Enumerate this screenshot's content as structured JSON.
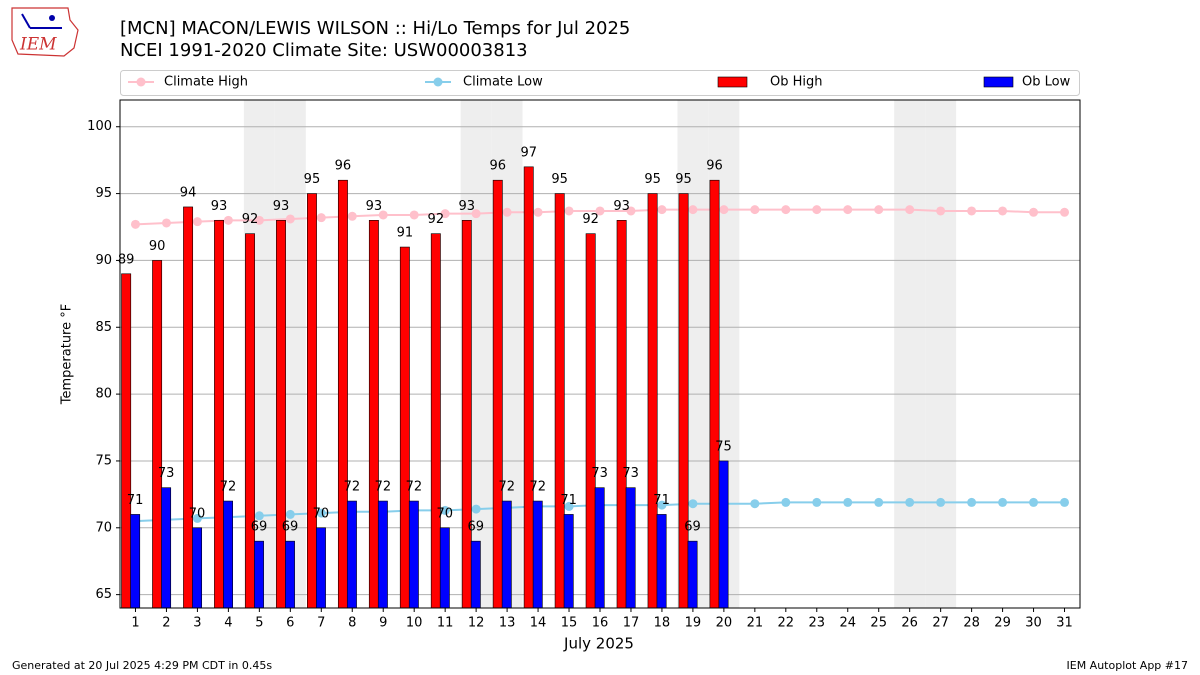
{
  "chart_data": {
    "type": "bar",
    "title": "[MCN] MACON/LEWIS WILSON :: Hi/Lo Temps for Jul 2025",
    "subtitle": "NCEI 1991-2020 Climate Site: USW00003813",
    "logo_text": "IEM",
    "x_label": "July 2025",
    "y_label": "Temperature °F",
    "footer_left": "Generated at 20 Jul 2025 4:29 PM CDT in 0.45s",
    "footer_right": "IEM Autoplot App #17",
    "categories": [
      "1",
      "2",
      "3",
      "4",
      "5",
      "6",
      "7",
      "8",
      "9",
      "10",
      "11",
      "12",
      "13",
      "14",
      "15",
      "16",
      "17",
      "18",
      "19",
      "20",
      "21",
      "22",
      "23",
      "24",
      "25",
      "26",
      "27",
      "28",
      "29",
      "30",
      "31"
    ],
    "shaded": [
      "5",
      "6",
      "12",
      "13",
      "19",
      "20",
      "26",
      "27"
    ],
    "ylim": [
      64,
      102
    ],
    "yticks": [
      65,
      70,
      75,
      80,
      85,
      90,
      95,
      100
    ],
    "grid": true,
    "series": [
      {
        "name": "Climate High",
        "kind": "line",
        "color": "#ffc0cb",
        "values": [
          92.7,
          92.8,
          92.9,
          93.0,
          93.0,
          93.1,
          93.2,
          93.3,
          93.4,
          93.4,
          93.5,
          93.5,
          93.6,
          93.6,
          93.7,
          93.7,
          93.7,
          93.8,
          93.8,
          93.8,
          93.8,
          93.8,
          93.8,
          93.8,
          93.8,
          93.8,
          93.7,
          93.7,
          93.7,
          93.6,
          93.6
        ]
      },
      {
        "name": "Climate Low",
        "kind": "line",
        "color": "#87ceeb",
        "values": [
          70.5,
          70.6,
          70.7,
          70.8,
          70.9,
          71.0,
          71.1,
          71.2,
          71.2,
          71.3,
          71.3,
          71.4,
          71.5,
          71.6,
          71.6,
          71.7,
          71.7,
          71.7,
          71.8,
          71.8,
          71.8,
          71.9,
          71.9,
          71.9,
          71.9,
          71.9,
          71.9,
          71.9,
          71.9,
          71.9,
          71.9
        ]
      },
      {
        "name": "Ob High",
        "kind": "bar",
        "color": "#ff0000",
        "values": [
          89,
          90,
          94,
          93,
          92,
          93,
          95,
          96,
          93,
          91,
          92,
          93,
          96,
          97,
          95,
          92,
          93,
          95,
          95,
          96,
          null,
          null,
          null,
          null,
          null,
          null,
          null,
          null,
          null,
          null,
          null
        ]
      },
      {
        "name": "Ob Low",
        "kind": "bar",
        "color": "#0000ff",
        "values": [
          71,
          73,
          70,
          72,
          69,
          69,
          70,
          72,
          72,
          72,
          70,
          69,
          72,
          72,
          71,
          73,
          73,
          71,
          69,
          75,
          null,
          null,
          null,
          null,
          null,
          null,
          null,
          null,
          null,
          null,
          null
        ]
      }
    ]
  }
}
